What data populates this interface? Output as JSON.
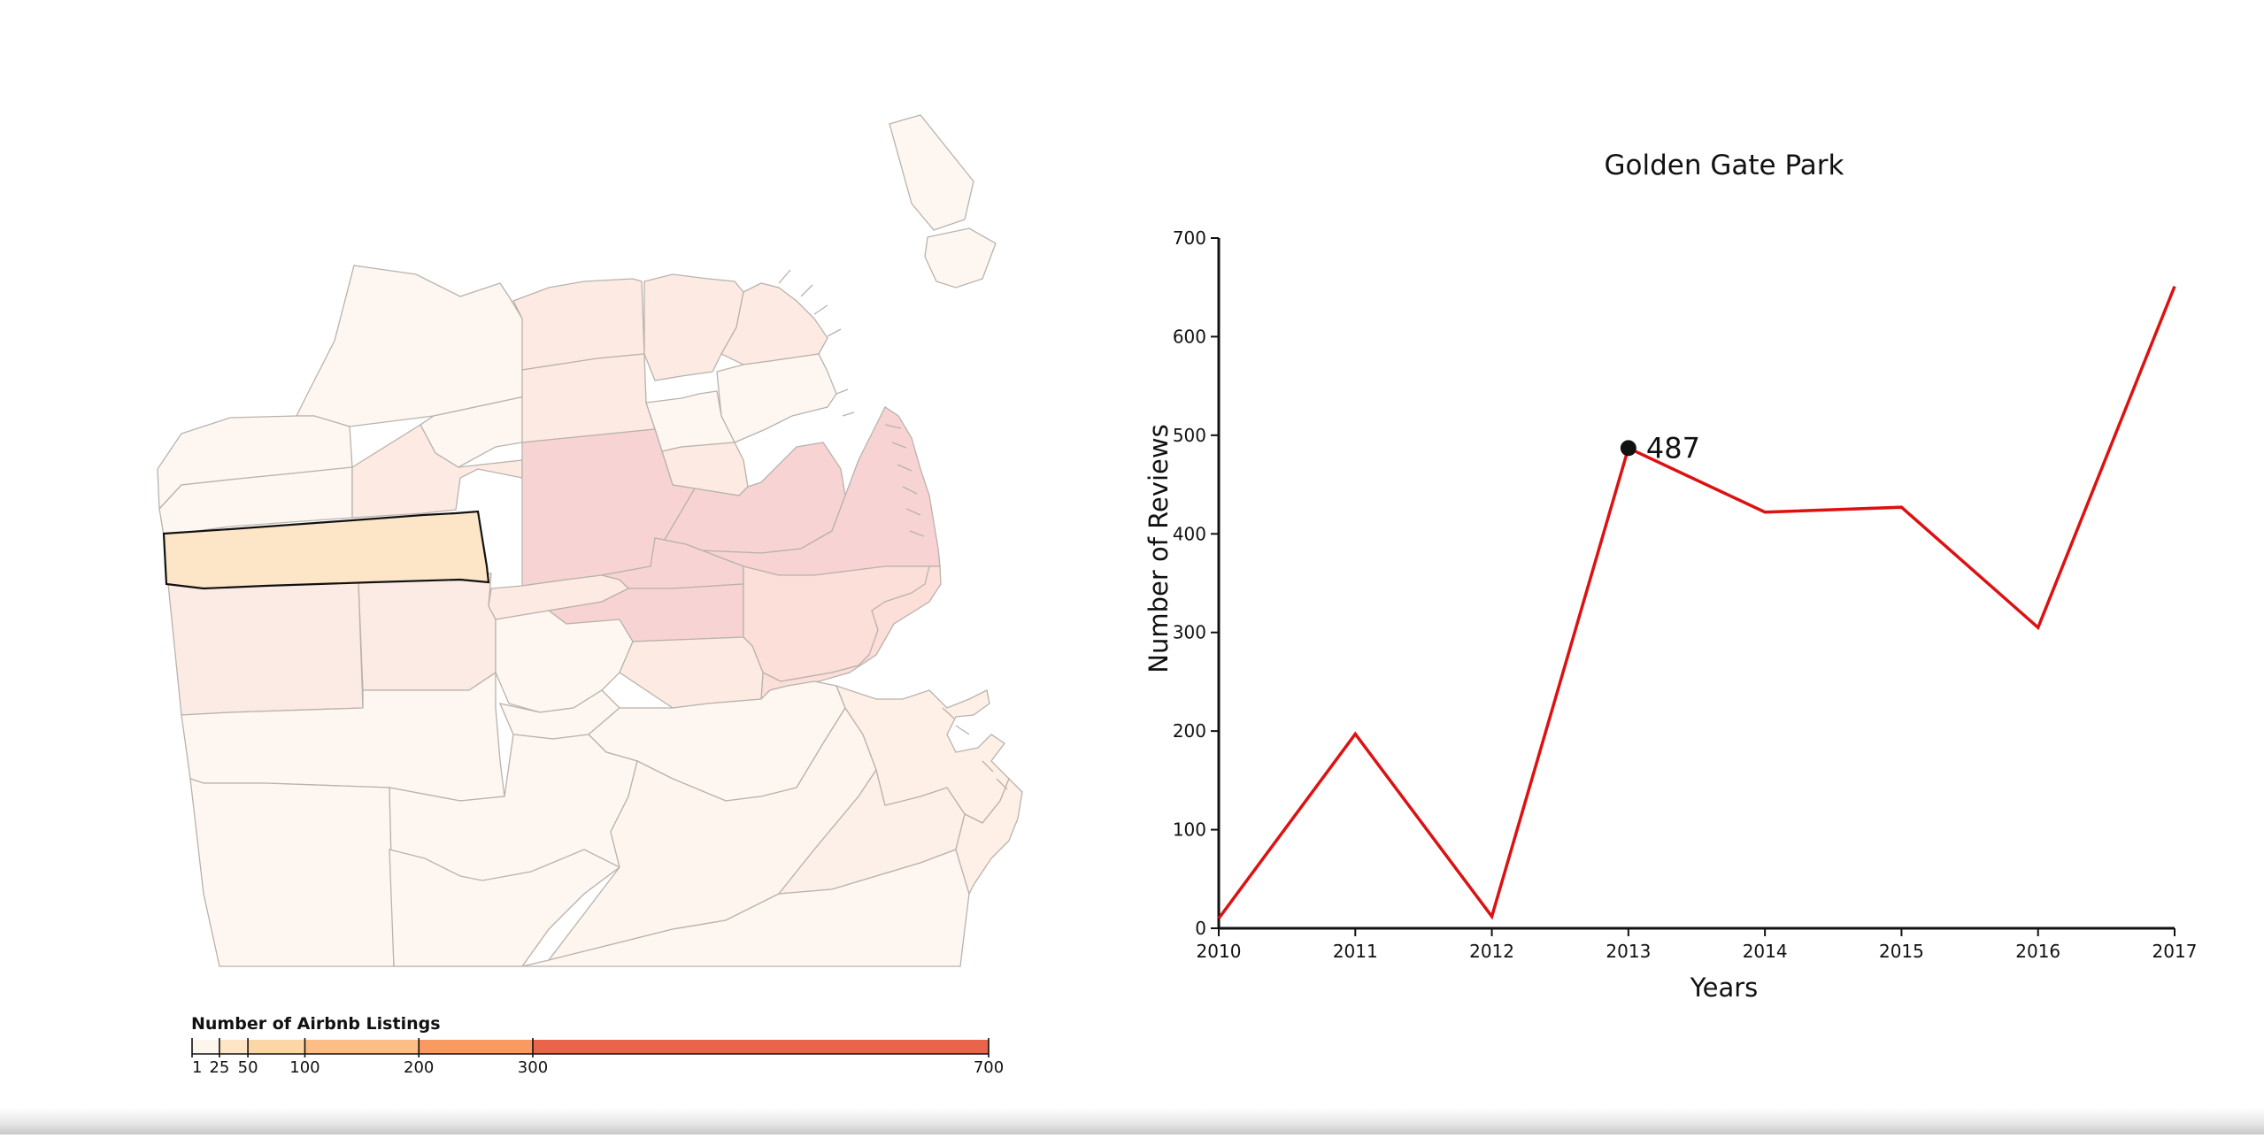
{
  "map": {
    "legend": {
      "title": "Number of Airbnb Listings",
      "thresholds": [
        1,
        25,
        50,
        100,
        200,
        300,
        700
      ],
      "tick_labels": [
        "1",
        "25",
        "50",
        "100",
        "200",
        "300",
        "700"
      ],
      "colors": [
        "#fdf6ec",
        "#fde5c6",
        "#fcd6a6",
        "#fcbd87",
        "#f89a62",
        "#e9644a"
      ]
    },
    "selected_region": "Golden Gate Park",
    "colors": {
      "lightest": "#fef7f1",
      "light": "#fdebe3",
      "mid": "#fbdfd8",
      "dark": "#f7d4d3",
      "selected": "#fde6c8",
      "border": "#b9b2ad"
    }
  },
  "chart_data": {
    "type": "line",
    "title": "Golden Gate Park",
    "xlabel": "Years",
    "ylabel": "Number of Reviews",
    "x": [
      "2010",
      "2011",
      "2012",
      "2013",
      "2014",
      "2015",
      "2016",
      "2017"
    ],
    "series": [
      {
        "values": [
          10,
          197,
          12,
          487,
          422,
          427,
          305,
          651
        ],
        "color": "#dd1111"
      }
    ],
    "ylim": [
      0,
      700
    ],
    "yticks": [
      0,
      100,
      200,
      300,
      400,
      500,
      600,
      700
    ],
    "highlight": {
      "x": "2013",
      "value": 487,
      "label": "487"
    },
    "grid": false,
    "legend": "none"
  }
}
